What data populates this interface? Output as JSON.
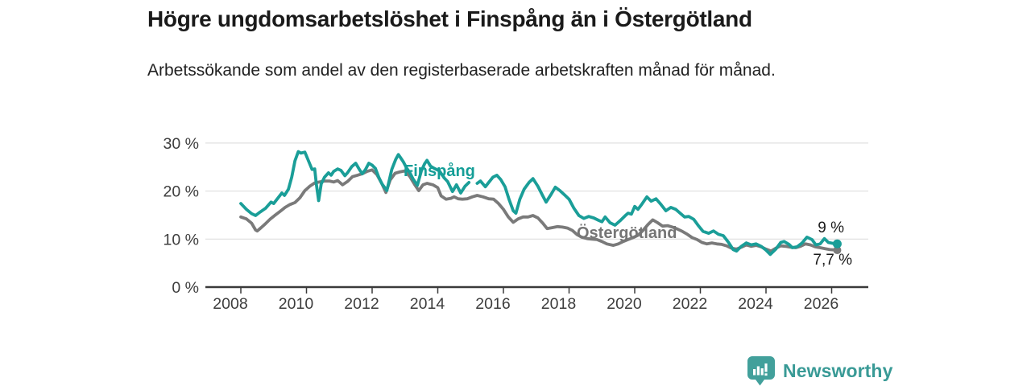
{
  "header": {
    "title": "Högre ungdomsarbetslöshet i Finspång än i Östergötland",
    "subtitle": "Arbetssökande som andel av den registerbaserade arbetskraften månad för månad."
  },
  "footer": {
    "brand": "Newsworthy"
  },
  "colors": {
    "finspang": "#1a9e98",
    "ostergotland": "#7a7a7a",
    "finspang_label": "#149e97",
    "ostergotland_label": "#757575",
    "axis": "#3a3a3a",
    "grid": "#d9d9d9",
    "tick_text": "#3d3d3d",
    "logo_teal": "#399a96"
  },
  "chart_data": {
    "type": "line",
    "title": "Högre ungdomsarbetslöshet i Finspång än i Östergötland",
    "subtitle": "Arbetssökande som andel av den registerbaserade arbetskraften månad för månad.",
    "grid": "horizontal",
    "legend_position": "inline-labels",
    "x_axis": {
      "ticks": [
        {
          "value": 2008,
          "label": "2008"
        },
        {
          "value": 2010,
          "label": "2010"
        },
        {
          "value": 2012,
          "label": "2012"
        },
        {
          "value": 2014,
          "label": "2014"
        },
        {
          "value": 2016,
          "label": "2016"
        },
        {
          "value": 2018,
          "label": "2018"
        },
        {
          "value": 2020,
          "label": "2020"
        },
        {
          "value": 2022,
          "label": "2022"
        },
        {
          "value": 2024,
          "label": "2024"
        },
        {
          "value": 2026,
          "label": "2026"
        }
      ]
    },
    "y_axis": {
      "unit": "%",
      "range": [
        0,
        30
      ],
      "ticks": [
        {
          "value": 0,
          "label": "0 %"
        },
        {
          "value": 10,
          "label": "10 %"
        },
        {
          "value": 20,
          "label": "20 %"
        },
        {
          "value": 30,
          "label": "30 %"
        }
      ]
    },
    "series": [
      {
        "name": "Finspång",
        "color": "#1a9e98",
        "end_label": "9 %",
        "end_value": 9.0,
        "points": [
          [
            2008.0,
            17.4
          ],
          [
            2008.17,
            16.2
          ],
          [
            2008.33,
            15.3
          ],
          [
            2008.45,
            14.9
          ],
          [
            2008.58,
            15.6
          ],
          [
            2008.75,
            16.4
          ],
          [
            2008.92,
            17.7
          ],
          [
            2009.0,
            17.4
          ],
          [
            2009.17,
            18.9
          ],
          [
            2009.25,
            19.6
          ],
          [
            2009.33,
            19.1
          ],
          [
            2009.45,
            20.4
          ],
          [
            2009.55,
            22.9
          ],
          [
            2009.65,
            26.3
          ],
          [
            2009.75,
            28.2
          ],
          [
            2009.83,
            27.9
          ],
          [
            2009.95,
            28.1
          ],
          [
            2010.05,
            26.5
          ],
          [
            2010.17,
            24.5
          ],
          [
            2010.25,
            24.6
          ],
          [
            2010.3,
            21.5
          ],
          [
            2010.37,
            18.0
          ],
          [
            2010.45,
            21.5
          ],
          [
            2010.55,
            22.9
          ],
          [
            2010.67,
            23.8
          ],
          [
            2010.75,
            23.3
          ],
          [
            2010.83,
            24.1
          ],
          [
            2010.95,
            24.6
          ],
          [
            2011.05,
            24.3
          ],
          [
            2011.17,
            23.2
          ],
          [
            2011.25,
            23.8
          ],
          [
            2011.38,
            25.1
          ],
          [
            2011.5,
            25.8
          ],
          [
            2011.62,
            24.4
          ],
          [
            2011.7,
            23.6
          ],
          [
            2011.8,
            24.5
          ],
          [
            2011.9,
            25.8
          ],
          [
            2012.0,
            25.4
          ],
          [
            2012.1,
            24.7
          ],
          [
            2012.2,
            22.9
          ],
          [
            2012.3,
            21.5
          ],
          [
            2012.45,
            20.1
          ],
          [
            2012.6,
            24.5
          ],
          [
            2012.72,
            26.6
          ],
          [
            2012.8,
            27.6
          ],
          [
            2012.88,
            26.8
          ],
          [
            2012.95,
            26.1
          ],
          [
            2013.05,
            24.8
          ],
          [
            2013.15,
            23.8
          ],
          [
            2013.25,
            22.5
          ],
          [
            2013.38,
            21.2
          ],
          [
            2013.5,
            24.2
          ],
          [
            2013.6,
            25.7
          ],
          [
            2013.67,
            26.4
          ],
          [
            2013.78,
            25.2
          ],
          [
            2013.9,
            24.7
          ],
          [
            2014.05,
            24.2
          ],
          [
            2014.2,
            22.7
          ],
          [
            2014.3,
            22.0
          ],
          [
            2014.45,
            19.9
          ],
          [
            2014.57,
            21.3
          ],
          [
            2014.7,
            19.6
          ],
          [
            2014.83,
            21.0
          ],
          [
            2014.95,
            21.8
          ],
          [
            2015.05,
            null
          ],
          [
            2015.13,
            null
          ],
          [
            2015.2,
            21.6
          ],
          [
            2015.3,
            22.1
          ],
          [
            2015.45,
            20.9
          ],
          [
            2015.55,
            21.8
          ],
          [
            2015.68,
            22.9
          ],
          [
            2015.8,
            23.3
          ],
          [
            2015.92,
            22.4
          ],
          [
            2016.05,
            20.9
          ],
          [
            2016.17,
            18.3
          ],
          [
            2016.3,
            15.9
          ],
          [
            2016.38,
            15.4
          ],
          [
            2016.5,
            18.3
          ],
          [
            2016.63,
            20.4
          ],
          [
            2016.78,
            21.8
          ],
          [
            2016.9,
            22.6
          ],
          [
            2017.05,
            21.0
          ],
          [
            2017.2,
            19.0
          ],
          [
            2017.3,
            17.7
          ],
          [
            2017.45,
            19.3
          ],
          [
            2017.58,
            20.8
          ],
          [
            2017.72,
            20.1
          ],
          [
            2017.88,
            19.1
          ],
          [
            2018.0,
            18.3
          ],
          [
            2018.15,
            16.4
          ],
          [
            2018.3,
            14.9
          ],
          [
            2018.45,
            14.3
          ],
          [
            2018.6,
            14.7
          ],
          [
            2018.75,
            14.4
          ],
          [
            2018.9,
            13.9
          ],
          [
            2019.0,
            13.6
          ],
          [
            2019.1,
            14.6
          ],
          [
            2019.25,
            13.4
          ],
          [
            2019.4,
            12.9
          ],
          [
            2019.55,
            13.8
          ],
          [
            2019.7,
            14.8
          ],
          [
            2019.8,
            15.4
          ],
          [
            2019.9,
            15.2
          ],
          [
            2020.0,
            16.8
          ],
          [
            2020.1,
            16.2
          ],
          [
            2020.22,
            17.3
          ],
          [
            2020.37,
            18.8
          ],
          [
            2020.5,
            17.9
          ],
          [
            2020.65,
            18.4
          ],
          [
            2020.8,
            17.2
          ],
          [
            2020.95,
            15.9
          ],
          [
            2021.1,
            16.6
          ],
          [
            2021.25,
            16.2
          ],
          [
            2021.4,
            15.3
          ],
          [
            2021.52,
            14.6
          ],
          [
            2021.65,
            14.7
          ],
          [
            2021.8,
            14.1
          ],
          [
            2021.95,
            12.7
          ],
          [
            2022.08,
            11.6
          ],
          [
            2022.25,
            11.2
          ],
          [
            2022.4,
            11.7
          ],
          [
            2022.55,
            11.0
          ],
          [
            2022.7,
            10.7
          ],
          [
            2022.85,
            9.4
          ],
          [
            2023.0,
            7.8
          ],
          [
            2023.1,
            7.5
          ],
          [
            2023.25,
            8.5
          ],
          [
            2023.4,
            9.2
          ],
          [
            2023.55,
            8.8
          ],
          [
            2023.7,
            9.0
          ],
          [
            2023.85,
            8.5
          ],
          [
            2024.0,
            7.7
          ],
          [
            2024.13,
            6.8
          ],
          [
            2024.3,
            7.9
          ],
          [
            2024.45,
            9.3
          ],
          [
            2024.55,
            9.5
          ],
          [
            2024.7,
            8.9
          ],
          [
            2024.8,
            8.2
          ],
          [
            2024.95,
            8.4
          ],
          [
            2025.1,
            9.2
          ],
          [
            2025.25,
            10.4
          ],
          [
            2025.4,
            9.9
          ],
          [
            2025.52,
            8.8
          ],
          [
            2025.65,
            9.0
          ],
          [
            2025.78,
            10.1
          ],
          [
            2025.9,
            9.3
          ],
          [
            2026.05,
            9.1
          ],
          [
            2026.17,
            9.0
          ]
        ]
      },
      {
        "name": "Östergötland",
        "color": "#7a7a7a",
        "end_label": "7,7 %",
        "end_value": 7.7,
        "points": [
          [
            2008.0,
            14.6
          ],
          [
            2008.17,
            14.2
          ],
          [
            2008.33,
            13.3
          ],
          [
            2008.45,
            11.9
          ],
          [
            2008.5,
            11.7
          ],
          [
            2008.62,
            12.4
          ],
          [
            2008.75,
            13.2
          ],
          [
            2008.9,
            14.2
          ],
          [
            2009.05,
            15.0
          ],
          [
            2009.2,
            15.8
          ],
          [
            2009.35,
            16.6
          ],
          [
            2009.5,
            17.2
          ],
          [
            2009.65,
            17.6
          ],
          [
            2009.8,
            18.6
          ],
          [
            2009.95,
            20.1
          ],
          [
            2010.1,
            21.0
          ],
          [
            2010.25,
            21.7
          ],
          [
            2010.4,
            21.9
          ],
          [
            2010.55,
            22.1
          ],
          [
            2010.7,
            22.1
          ],
          [
            2010.83,
            21.9
          ],
          [
            2010.95,
            22.2
          ],
          [
            2011.1,
            21.3
          ],
          [
            2011.25,
            22.0
          ],
          [
            2011.4,
            23.0
          ],
          [
            2011.55,
            23.3
          ],
          [
            2011.7,
            23.6
          ],
          [
            2011.85,
            24.1
          ],
          [
            2012.0,
            24.4
          ],
          [
            2012.15,
            23.4
          ],
          [
            2012.3,
            21.5
          ],
          [
            2012.42,
            19.7
          ],
          [
            2012.55,
            22.3
          ],
          [
            2012.7,
            23.7
          ],
          [
            2012.85,
            24.0
          ],
          [
            2013.0,
            24.2
          ],
          [
            2013.15,
            23.0
          ],
          [
            2013.3,
            21.3
          ],
          [
            2013.42,
            20.1
          ],
          [
            2013.55,
            21.3
          ],
          [
            2013.67,
            21.6
          ],
          [
            2013.85,
            21.3
          ],
          [
            2014.0,
            20.7
          ],
          [
            2014.1,
            19.0
          ],
          [
            2014.25,
            18.3
          ],
          [
            2014.4,
            18.5
          ],
          [
            2014.5,
            18.8
          ],
          [
            2014.62,
            18.4
          ],
          [
            2014.75,
            18.3
          ],
          [
            2014.9,
            18.4
          ],
          [
            2015.05,
            18.8
          ],
          [
            2015.2,
            19.1
          ],
          [
            2015.38,
            18.8
          ],
          [
            2015.55,
            18.4
          ],
          [
            2015.7,
            18.3
          ],
          [
            2015.85,
            17.4
          ],
          [
            2016.0,
            16.2
          ],
          [
            2016.15,
            14.6
          ],
          [
            2016.3,
            13.5
          ],
          [
            2016.45,
            14.2
          ],
          [
            2016.6,
            14.6
          ],
          [
            2016.75,
            14.6
          ],
          [
            2016.9,
            14.9
          ],
          [
            2017.05,
            14.4
          ],
          [
            2017.2,
            13.3
          ],
          [
            2017.33,
            12.2
          ],
          [
            2017.5,
            12.4
          ],
          [
            2017.65,
            12.6
          ],
          [
            2017.8,
            12.5
          ],
          [
            2017.95,
            12.3
          ],
          [
            2018.1,
            11.8
          ],
          [
            2018.25,
            10.9
          ],
          [
            2018.38,
            10.4
          ],
          [
            2018.55,
            10.1
          ],
          [
            2018.7,
            10.0
          ],
          [
            2018.85,
            9.9
          ],
          [
            2019.0,
            9.5
          ],
          [
            2019.15,
            9.0
          ],
          [
            2019.35,
            8.7
          ],
          [
            2019.5,
            9.0
          ],
          [
            2019.65,
            9.5
          ],
          [
            2019.8,
            9.9
          ],
          [
            2019.95,
            10.3
          ],
          [
            2020.1,
            10.8
          ],
          [
            2020.25,
            11.8
          ],
          [
            2020.4,
            13.0
          ],
          [
            2020.55,
            14.0
          ],
          [
            2020.7,
            13.4
          ],
          [
            2020.85,
            12.7
          ],
          [
            2021.0,
            12.8
          ],
          [
            2021.15,
            12.5
          ],
          [
            2021.3,
            12.1
          ],
          [
            2021.45,
            11.6
          ],
          [
            2021.6,
            11.0
          ],
          [
            2021.75,
            10.3
          ],
          [
            2021.9,
            9.9
          ],
          [
            2022.05,
            9.3
          ],
          [
            2022.2,
            9.0
          ],
          [
            2022.35,
            9.2
          ],
          [
            2022.5,
            9.0
          ],
          [
            2022.65,
            8.9
          ],
          [
            2022.8,
            8.6
          ],
          [
            2022.95,
            8.1
          ],
          [
            2023.1,
            7.9
          ],
          [
            2023.25,
            8.3
          ],
          [
            2023.4,
            8.8
          ],
          [
            2023.55,
            8.5
          ],
          [
            2023.7,
            8.7
          ],
          [
            2023.85,
            8.4
          ],
          [
            2024.0,
            7.9
          ],
          [
            2024.15,
            7.5
          ],
          [
            2024.3,
            8.1
          ],
          [
            2024.45,
            8.6
          ],
          [
            2024.6,
            8.5
          ],
          [
            2024.75,
            8.3
          ],
          [
            2024.9,
            8.2
          ],
          [
            2025.05,
            8.5
          ],
          [
            2025.2,
            9.0
          ],
          [
            2025.35,
            8.8
          ],
          [
            2025.5,
            8.4
          ],
          [
            2025.65,
            8.2
          ],
          [
            2025.8,
            8.0
          ],
          [
            2025.95,
            7.8
          ],
          [
            2026.17,
            7.7
          ]
        ]
      }
    ]
  }
}
